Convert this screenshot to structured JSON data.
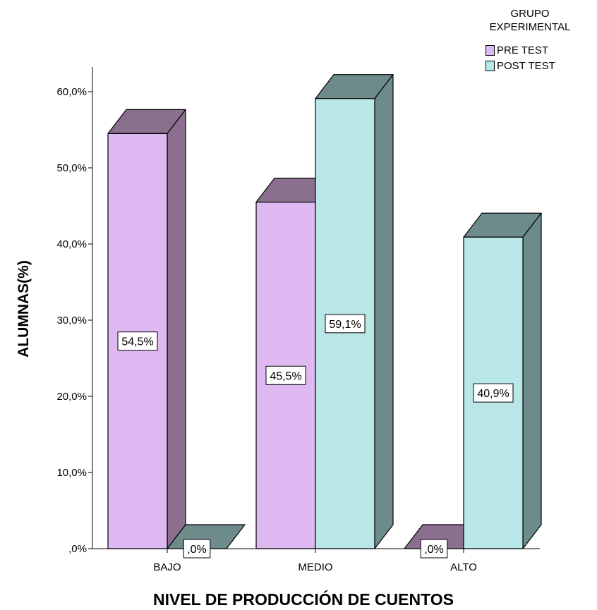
{
  "chart_data": {
    "type": "bar",
    "variant": "3d-clustered",
    "categories": [
      "BAJO",
      "MEDIO",
      "ALTO"
    ],
    "series": [
      {
        "name": "PRE TEST",
        "values": [
          54.5,
          45.5,
          0.0
        ],
        "labels": [
          "54,5%",
          "45,5%",
          ",0%"
        ],
        "color": "#deb8f0",
        "side_color": "#8b6f8f"
      },
      {
        "name": "POST TEST",
        "values": [
          0.0,
          59.1,
          40.9
        ],
        "labels": [
          ",0%",
          "59,1%",
          "40,9%"
        ],
        "color": "#b9e6e6",
        "side_color": "#6e8b8b"
      }
    ],
    "xlabel": "NIVEL DE PRODUCCIÓN DE CUENTOS",
    "ylabel": "ALUMNAS(%)",
    "ylim": [
      0,
      60
    ],
    "yticks": [
      0,
      10,
      20,
      30,
      40,
      50,
      60
    ],
    "ytick_labels": [
      ",0%",
      "10,0%",
      "20,0%",
      "30,0%",
      "40,0%",
      "50,0%",
      "60,0%"
    ],
    "grid": false,
    "legend": {
      "title_lines": [
        "GRUPO",
        "EXPERIMENTAL"
      ],
      "position": "top-right"
    }
  }
}
